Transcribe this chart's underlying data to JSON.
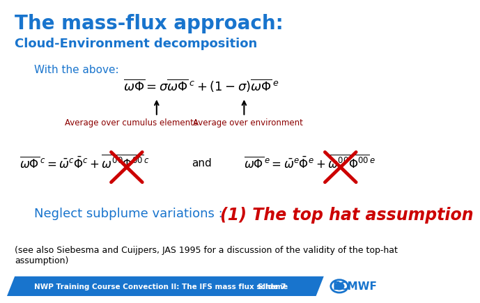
{
  "title": "The mass-flux approach:",
  "subtitle": "Cloud-Environment decomposition",
  "title_color": "#1874CD",
  "subtitle_color": "#1874CD",
  "title_fontsize": 20,
  "subtitle_fontsize": 13,
  "bg_color": "#ffffff",
  "with_above_text": "With the above:",
  "with_above_color": "#1874CD",
  "with_above_fontsize": 11,
  "arrow1_label": "Average over cumulus elements",
  "arrow2_label": "Average over environment",
  "arrows_color": "#8B0000",
  "and_text": "and",
  "neglect_text": "Neglect subplume variations : ",
  "neglect_color": "#1874CD",
  "tophat_text": "(1) The top hat assumption",
  "tophat_color": "#cc0000",
  "neglect_fontsize": 13,
  "tophat_fontsize": 17,
  "footer_text1": "(see also Siebesma and Cuijpers, JAS 1995 for a discussion of the validity of the top-hat",
  "footer_text2": "assumption)",
  "footer_fontsize": 9,
  "footer_color": "#000000",
  "footer_bar_text": "NWP Training Course Convection II: The IFS mass flux scheme",
  "footer_bar_slide": "Slide 7",
  "footer_bar_color": "#1874CD",
  "ecmwf_color": "#1874CD",
  "cross_color": "#cc0000",
  "eq1_fontsize": 13,
  "eq2_fontsize": 12
}
